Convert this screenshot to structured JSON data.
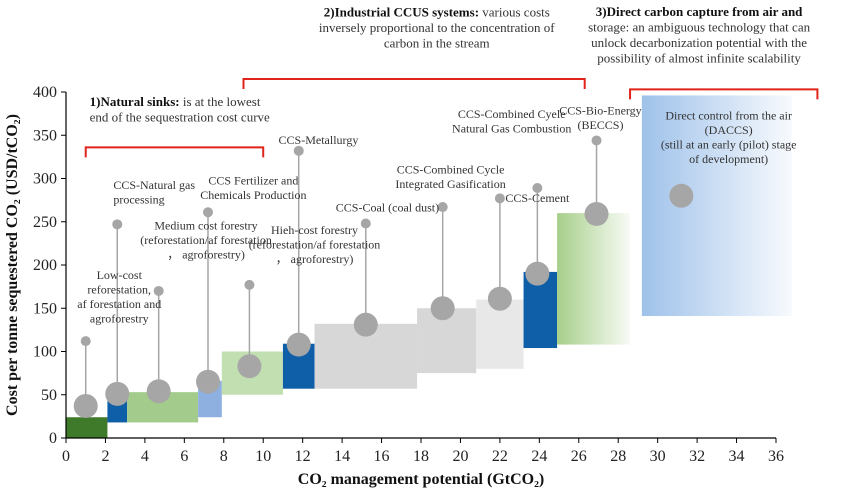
{
  "chart_data": {
    "type": "bar",
    "xlabel": "CO₂ management potential (GtCO₂)",
    "ylabel": "Cost per tonne sequestered CO₂ (USD/tCO₂)",
    "xlim": [
      0,
      36
    ],
    "ylim": [
      0,
      400
    ],
    "x_ticks": [
      0,
      2,
      4,
      6,
      8,
      10,
      12,
      14,
      16,
      18,
      20,
      22,
      24,
      26,
      28,
      30,
      32,
      34,
      36
    ],
    "y_ticks": [
      0,
      50,
      100,
      150,
      200,
      250,
      300,
      350,
      400
    ],
    "boxes": [
      {
        "x0": 0.0,
        "x1": 2.1,
        "y0": 0,
        "y1": 24,
        "color": "#3f7a2a",
        "gradient": false
      },
      {
        "x0": 2.1,
        "x1": 3.1,
        "y0": 18,
        "y1": 46,
        "color": "#0e5ea8",
        "gradient": false
      },
      {
        "x0": 3.1,
        "x1": 6.7,
        "y0": 18,
        "y1": 53,
        "color": "#a3cc8c",
        "gradient": false
      },
      {
        "x0": 6.7,
        "x1": 7.9,
        "y0": 24,
        "y1": 66,
        "color": "#8eb0e0",
        "gradient": false
      },
      {
        "x0": 7.9,
        "x1": 11.0,
        "y0": 50,
        "y1": 100,
        "color": "#c1dfb0",
        "gradient": false
      },
      {
        "x0": 11.0,
        "x1": 12.6,
        "y0": 57,
        "y1": 109,
        "color": "#0e5ea8",
        "gradient": false
      },
      {
        "x0": 12.6,
        "x1": 17.8,
        "y0": 57,
        "y1": 132,
        "color": "#d7d7d7",
        "gradient": false
      },
      {
        "x0": 17.8,
        "x1": 20.8,
        "y0": 75,
        "y1": 150,
        "color": "#d7d7d7",
        "gradient": false
      },
      {
        "x0": 20.8,
        "x1": 23.2,
        "y0": 80,
        "y1": 160,
        "color": "#e8e8e8",
        "gradient": false
      },
      {
        "x0": 23.2,
        "x1": 24.9,
        "y0": 104,
        "y1": 192,
        "color": "#0e5ea8",
        "gradient": false
      },
      {
        "x0": 24.9,
        "x1": 28.6,
        "y0": 108,
        "y1": 260,
        "color": "#a7cf8a",
        "gradient": true
      },
      {
        "x0": 29.2,
        "x1": 36.8,
        "y0": 141,
        "y1": 396,
        "color": "#9fc2ea",
        "gradient": true
      }
    ],
    "markers": [
      {
        "x": 1.0,
        "y": 37,
        "top": 112
      },
      {
        "x": 2.6,
        "y": 51,
        "top": 247
      },
      {
        "x": 4.7,
        "y": 54,
        "top": 170
      },
      {
        "x": 7.2,
        "y": 65,
        "top": 261
      },
      {
        "x": 9.3,
        "y": 83,
        "top": 177
      },
      {
        "x": 11.8,
        "y": 108,
        "top": 332
      },
      {
        "x": 15.2,
        "y": 131,
        "top": 248
      },
      {
        "x": 19.1,
        "y": 150,
        "top": 267
      },
      {
        "x": 22.0,
        "y": 161,
        "top": 277
      },
      {
        "x": 23.9,
        "y": 190,
        "top": 289
      },
      {
        "x": 26.9,
        "y": 259,
        "top": 344
      },
      {
        "x": 31.2,
        "y": 280,
        "top": null
      }
    ],
    "labels": [
      {
        "x": 2.4,
        "y": 288,
        "lines": [
          "CCS-Natural gas",
          "processing"
        ],
        "anchor": "start"
      },
      {
        "x": 7.1,
        "y": 241,
        "lines": [
          "Medium cost forestry",
          "(reforestation/af forestation",
          "， agroforestry)"
        ],
        "anchor": "middle"
      },
      {
        "x": 2.7,
        "y": 184,
        "lines": [
          "Low-cost",
          "reforestation,",
          "af forestation and",
          "agroforestry"
        ],
        "anchor": "middle"
      },
      {
        "x": 9.5,
        "y": 293,
        "lines": [
          "CCS Fertilizer and",
          "Chemicals Production"
        ],
        "anchor": "middle"
      },
      {
        "x": 12.6,
        "y": 236,
        "lines": [
          "Hieh-cost forestry",
          "(reforestation/af forestation",
          "， agroforestry)"
        ],
        "anchor": "middle"
      },
      {
        "x": 12.8,
        "y": 340,
        "lines": [
          "CCS-Metallurgy"
        ],
        "anchor": "middle"
      },
      {
        "x": 16.3,
        "y": 262,
        "lines": [
          "CCS-Coal (coal dust)"
        ],
        "anchor": "middle"
      },
      {
        "x": 19.5,
        "y": 306,
        "lines": [
          "CCS-Combined Cycle",
          "Integrated Gasification"
        ],
        "anchor": "middle"
      },
      {
        "x": 22.6,
        "y": 370,
        "lines": [
          "CCS-Combined Cyele",
          "Natural Gas Combustion"
        ],
        "anchor": "middle"
      },
      {
        "x": 23.9,
        "y": 273,
        "lines": [
          "CCS-Cement"
        ],
        "anchor": "middle"
      },
      {
        "x": 27.1,
        "y": 374,
        "lines": [
          "CCS-Bio-Energy",
          "(BECCS)"
        ],
        "anchor": "middle"
      },
      {
        "x": 33.6,
        "y": 368,
        "lines": [
          "Direct control from the air",
          "(DACCS)",
          "(still at an early (pilot) stage",
          "of development)"
        ],
        "anchor": "middle"
      }
    ],
    "categories": [
      {
        "bold": "1)Natural sinks:",
        "rest": " is at the lowest",
        "more": [
          "end of the sequestration cost curve"
        ],
        "x": 1.2,
        "y": 384,
        "anchor": "start",
        "bracket": [
          1.0,
          10.0
        ],
        "bracket_y": 336
      },
      {
        "bold": "2)Industrial CCUS systems:",
        "rest": " various costs",
        "more": [
          "inversely proportional to the concentration of",
          "carbon in the stream"
        ],
        "x": 18.8,
        "y": 487,
        "anchor": "middle",
        "bracket": [
          9.0,
          26.3
        ],
        "bracket_y": 415
      },
      {
        "bold": "3)Direct carbon capture from air and",
        "rest": "",
        "more": [
          "storage: an ambiguous technology that can",
          "unlock decarbonization potential with the",
          "possibility of almost infinite scalability"
        ],
        "x": 32.1,
        "y": 488,
        "anchor": "middle",
        "bracket": [
          28.6,
          38.1
        ],
        "bracket_y": 403
      }
    ]
  }
}
